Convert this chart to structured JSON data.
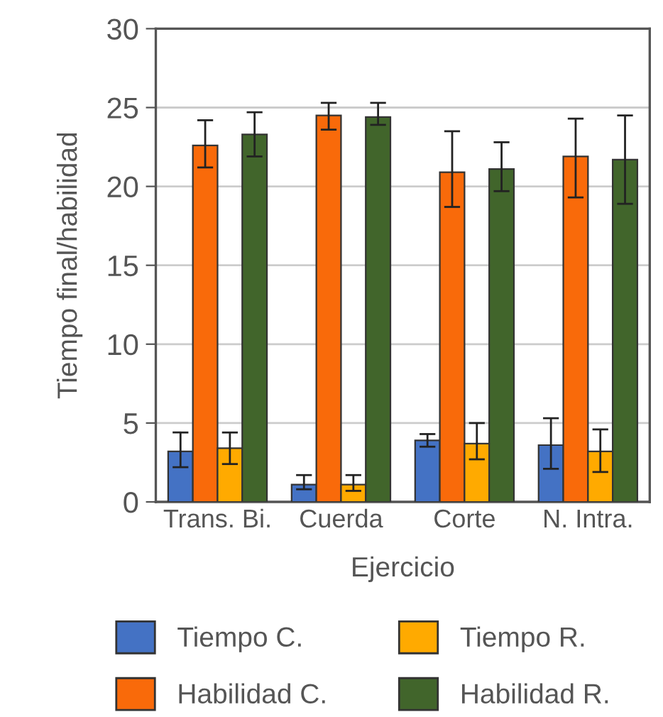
{
  "chart_data": {
    "type": "bar",
    "xlabel": "Ejercicio",
    "ylabel": "Tiempo final/habilidad",
    "categories": [
      "Trans. Bi.",
      "Cuerda",
      "Corte",
      "N. Intra."
    ],
    "series": [
      {
        "name": "Tiempo C.",
        "color": "#4472c4",
        "values": [
          3.2,
          1.1,
          3.9,
          3.6
        ],
        "errors": [
          [
            2.2,
            4.4
          ],
          [
            0.8,
            1.7
          ],
          [
            3.5,
            4.3
          ],
          [
            2.1,
            5.3
          ]
        ]
      },
      {
        "name": "Habilidad C.",
        "color": "#f96a0a",
        "values": [
          22.6,
          24.5,
          20.9,
          21.9
        ],
        "errors": [
          [
            21.2,
            24.2
          ],
          [
            23.6,
            25.3
          ],
          [
            18.7,
            23.5
          ],
          [
            19.3,
            24.3
          ]
        ]
      },
      {
        "name": "Tiempo R.",
        "color": "#ffaa00",
        "values": [
          3.4,
          1.1,
          3.7,
          3.2
        ],
        "errors": [
          [
            2.4,
            4.4
          ],
          [
            0.7,
            1.7
          ],
          [
            2.7,
            5.0
          ],
          [
            1.9,
            4.6
          ]
        ]
      },
      {
        "name": "Habilidad R.",
        "color": "#41652b",
        "values": [
          23.3,
          24.4,
          21.1,
          21.7
        ],
        "errors": [
          [
            21.9,
            24.7
          ],
          [
            23.9,
            25.3
          ],
          [
            19.7,
            22.8
          ],
          [
            18.9,
            24.5
          ]
        ]
      }
    ],
    "ylim": [
      0,
      30
    ],
    "yticks": [
      0,
      5,
      10,
      15,
      20,
      25,
      30
    ],
    "grid": "y",
    "legend": "bottom"
  }
}
